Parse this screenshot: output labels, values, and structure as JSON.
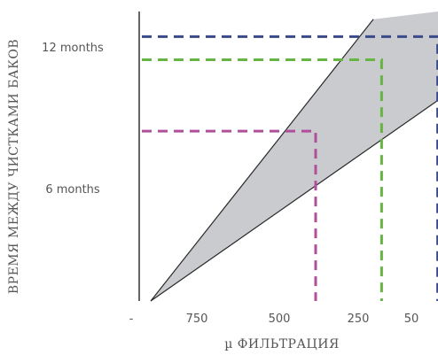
{
  "chart_data": {
    "type": "area",
    "xlabel": "µ ФИЛЬТРАЦИЯ",
    "ylabel": "ВРЕМЯ МЕЖДУ ЧИСТКАМИ БАКОВ",
    "x_ticks": [
      "-",
      "750",
      "500",
      "250",
      "50"
    ],
    "y_ticks": [
      "6 months",
      "12 months"
    ],
    "grid": false,
    "legend": "none",
    "band": {
      "upper_boundary": [
        {
          "x": 0,
          "y": 0
        },
        {
          "x": 1.35,
          "y": 14.6
        }
      ],
      "lower_boundary": [
        {
          "x": 0,
          "y": 0
        },
        {
          "x": 1.82,
          "y": 10.4
        }
      ],
      "fill": "#c9cbcf"
    },
    "guides": [
      {
        "x": 1.0,
        "y": 8.8,
        "color": "#b0509a"
      },
      {
        "x": 1.4,
        "y": 12.5,
        "color": "#66b544"
      },
      {
        "x": 1.74,
        "y": 13.7,
        "color": "#3a4a8c"
      }
    ]
  }
}
